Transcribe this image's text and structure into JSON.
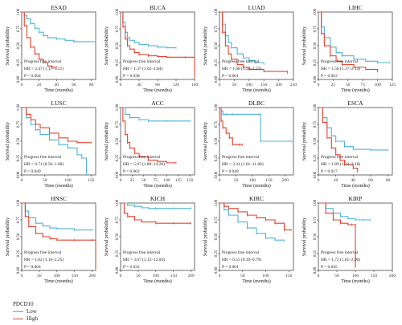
{
  "colors": {
    "low": "#4fb3d8",
    "high": "#e0442e"
  },
  "y_label": "Survival probability",
  "x_label": "Time (months)",
  "y_ticks": [
    "0.00",
    "0.25",
    "0.50",
    "0.75",
    "1.00"
  ],
  "legend": {
    "title": "PDCD10",
    "low": "Low",
    "high": "High"
  },
  "chart_data": [
    {
      "type": "line",
      "title": "ESAD",
      "xlim": [
        0,
        85
      ],
      "x_ticks": [
        0,
        20,
        40,
        60,
        80
      ],
      "ylim": [
        0,
        1
      ],
      "annotation_title": "Progress free interval",
      "hr": "HR = 2.47 (1.17–5.21)",
      "p": "P = 0.004",
      "series": [
        {
          "name": "Low",
          "x": [
            0,
            3,
            6,
            10,
            15,
            20,
            25,
            30,
            40,
            50,
            60,
            85
          ],
          "y": [
            1,
            0.95,
            0.9,
            0.83,
            0.76,
            0.7,
            0.65,
            0.62,
            0.6,
            0.58,
            0.56,
            0.56
          ]
        },
        {
          "name": "High",
          "x": [
            0,
            3,
            6,
            10,
            15,
            20,
            25,
            30,
            35,
            40
          ],
          "y": [
            1,
            0.8,
            0.62,
            0.48,
            0.38,
            0.3,
            0.25,
            0.2,
            0.18,
            0.18
          ]
        }
      ]
    },
    {
      "type": "line",
      "title": "BLCA",
      "xlim": [
        0,
        160
      ],
      "x_ticks": [
        0,
        40,
        80,
        120,
        160
      ],
      "ylim": [
        0,
        1
      ],
      "annotation_title": "Progress free interval",
      "hr": "HR = 1.37 (1.02–1.84)",
      "p": "P = 0.038",
      "series": [
        {
          "name": "Low",
          "x": [
            0,
            5,
            10,
            15,
            20,
            30,
            40,
            60,
            80,
            100,
            120
          ],
          "y": [
            1,
            0.85,
            0.7,
            0.62,
            0.58,
            0.55,
            0.52,
            0.5,
            0.48,
            0.47,
            0.47
          ]
        },
        {
          "name": "High",
          "x": [
            0,
            5,
            10,
            15,
            20,
            30,
            40,
            60,
            80,
            100,
            140,
            160
          ],
          "y": [
            1,
            0.78,
            0.6,
            0.5,
            0.45,
            0.4,
            0.37,
            0.35,
            0.34,
            0.33,
            0.33,
            0.05
          ]
        }
      ]
    },
    {
      "type": "line",
      "title": "LUAD",
      "xlim": [
        0,
        250
      ],
      "x_ticks": [
        0,
        50,
        100,
        150,
        200,
        250
      ],
      "ylim": [
        0,
        1
      ],
      "annotation_title": "Progress free interval",
      "hr": "HR = 1.68 (1.24–2.27)",
      "p": "P = 0.001",
      "series": [
        {
          "name": "Low",
          "x": [
            0,
            10,
            20,
            30,
            40,
            60,
            80,
            100,
            120,
            150
          ],
          "y": [
            1,
            0.82,
            0.65,
            0.55,
            0.47,
            0.38,
            0.32,
            0.28,
            0.25,
            0.23
          ]
        },
        {
          "name": "High",
          "x": [
            0,
            10,
            20,
            30,
            40,
            60,
            80,
            100,
            150,
            230
          ],
          "y": [
            1,
            0.7,
            0.5,
            0.38,
            0.3,
            0.22,
            0.18,
            0.15,
            0.12,
            0.1
          ]
        }
      ]
    },
    {
      "type": "line",
      "title": "LIHC",
      "xlim": [
        0,
        125
      ],
      "x_ticks": [
        0,
        25,
        50,
        75,
        100,
        125
      ],
      "ylim": [
        0,
        1
      ],
      "annotation_title": "Progress free interval",
      "hr": "HR = 1.58 (1.17–2.13)",
      "p": "P = 0.003",
      "series": [
        {
          "name": "Low",
          "x": [
            0,
            5,
            10,
            20,
            30,
            40,
            60,
            80,
            100,
            120
          ],
          "y": [
            1,
            0.78,
            0.62,
            0.48,
            0.4,
            0.35,
            0.3,
            0.27,
            0.25,
            0.25
          ]
        },
        {
          "name": "High",
          "x": [
            0,
            5,
            10,
            20,
            30,
            40,
            60,
            80,
            100
          ],
          "y": [
            1,
            0.68,
            0.5,
            0.35,
            0.27,
            0.22,
            0.18,
            0.15,
            0.12
          ]
        }
      ]
    },
    {
      "type": "line",
      "title": "LUSC",
      "xlim": [
        0,
        160
      ],
      "x_ticks": [
        0,
        50,
        100,
        150
      ],
      "ylim": [
        0,
        1
      ],
      "annotation_title": "Progress free interval",
      "hr": "HR = 0.71 (0.50–1.00)",
      "p": "P = 0.049",
      "series": [
        {
          "name": "Low",
          "x": [
            0,
            10,
            20,
            30,
            40,
            60,
            80,
            100,
            120,
            130,
            140
          ],
          "y": [
            1,
            0.85,
            0.75,
            0.67,
            0.6,
            0.52,
            0.45,
            0.4,
            0.3,
            0.25,
            0.02
          ]
        },
        {
          "name": "High",
          "x": [
            0,
            10,
            20,
            30,
            40,
            60,
            80,
            100,
            120,
            150
          ],
          "y": [
            1,
            0.9,
            0.82,
            0.75,
            0.7,
            0.62,
            0.55,
            0.5,
            0.48,
            0.48
          ]
        }
      ]
    },
    {
      "type": "line",
      "title": "ACC",
      "xlim": [
        0,
        160
      ],
      "x_ticks": [
        0,
        25,
        50,
        75,
        100,
        125,
        150
      ],
      "ylim": [
        0,
        1
      ],
      "annotation_title": "Progress free interval",
      "hr": "HR = 5.07 (1.80–14.28)",
      "p": "P = 0.002",
      "series": [
        {
          "name": "Low",
          "x": [
            0,
            10,
            20,
            40,
            60,
            100,
            150
          ],
          "y": [
            1,
            0.9,
            0.85,
            0.82,
            0.8,
            0.8,
            0.8
          ]
        },
        {
          "name": "High",
          "x": [
            0,
            5,
            10,
            15,
            20,
            30,
            40,
            60,
            80,
            100,
            120
          ],
          "y": [
            1,
            0.8,
            0.6,
            0.48,
            0.4,
            0.32,
            0.27,
            0.22,
            0.2,
            0.18,
            0.18
          ]
        }
      ]
    },
    {
      "type": "line",
      "title": "DLBC",
      "xlim": [
        0,
        225
      ],
      "x_ticks": [
        0,
        50,
        100,
        150,
        200
      ],
      "ylim": [
        0,
        1
      ],
      "annotation_title": "Progress free interval",
      "hr": "HR = 3.34 (1.01–11.08)",
      "p": "P = 0.049",
      "series": [
        {
          "name": "Low",
          "x": [
            0,
            5,
            10,
            20,
            40,
            120,
            125,
            220
          ],
          "y": [
            1,
            0.95,
            0.9,
            0.9,
            0.9,
            0.9,
            0.5,
            0.5
          ]
        },
        {
          "name": "High",
          "x": [
            0,
            5,
            10,
            20,
            30,
            40,
            60,
            70
          ],
          "y": [
            1,
            0.8,
            0.7,
            0.62,
            0.55,
            0.45,
            0.45,
            0.45
          ]
        }
      ]
    },
    {
      "type": "line",
      "title": "ESCA",
      "xlim": [
        0,
        85
      ],
      "x_ticks": [
        0,
        20,
        40,
        60,
        80
      ],
      "ylim": [
        0,
        1
      ],
      "annotation_title": "Progress free interval",
      "hr": "HR = 1.89 (1.12–3.18)",
      "p": "P = 0.017",
      "series": [
        {
          "name": "Low",
          "x": [
            0,
            5,
            10,
            15,
            20,
            30,
            40,
            60,
            80
          ],
          "y": [
            1,
            0.85,
            0.7,
            0.58,
            0.5,
            0.42,
            0.38,
            0.37,
            0.37
          ]
        },
        {
          "name": "High",
          "x": [
            0,
            5,
            10,
            15,
            20,
            25,
            30,
            40,
            45
          ],
          "y": [
            1,
            0.78,
            0.55,
            0.4,
            0.3,
            0.22,
            0.15,
            0.1,
            0.05
          ]
        }
      ]
    },
    {
      "type": "line",
      "title": "HNSC",
      "xlim": [
        0,
        210
      ],
      "x_ticks": [
        0,
        50,
        100,
        150,
        200
      ],
      "ylim": [
        0,
        1
      ],
      "annotation_title": "Progress free interval",
      "hr": "HR = 1.62 (1.16–2.25)",
      "p": "P = 0.004",
      "series": [
        {
          "name": "Low",
          "x": [
            0,
            10,
            20,
            40,
            60,
            80,
            100,
            150,
            200
          ],
          "y": [
            1,
            0.88,
            0.78,
            0.7,
            0.66,
            0.63,
            0.62,
            0.6,
            0.6
          ]
        },
        {
          "name": "High",
          "x": [
            0,
            10,
            20,
            40,
            60,
            80,
            100,
            150,
            200,
            210
          ],
          "y": [
            1,
            0.8,
            0.65,
            0.55,
            0.5,
            0.47,
            0.45,
            0.45,
            0.45,
            0.02
          ]
        }
      ]
    },
    {
      "type": "line",
      "title": "KICH",
      "xlim": [
        0,
        210
      ],
      "x_ticks": [
        0,
        50,
        100,
        150,
        200
      ],
      "ylim": [
        0,
        1
      ],
      "annotation_title": "Progress free interval",
      "hr": "HR = 3.67 (1.12–12.04)",
      "p": "P = 0.032",
      "series": [
        {
          "name": "Low",
          "x": [
            0,
            20,
            40,
            60,
            80,
            100,
            150,
            200
          ],
          "y": [
            1,
            0.97,
            0.95,
            0.93,
            0.92,
            0.92,
            0.92,
            0.92
          ]
        },
        {
          "name": "High",
          "x": [
            0,
            10,
            20,
            40,
            60,
            100,
            150,
            200
          ],
          "y": [
            1,
            0.85,
            0.8,
            0.75,
            0.72,
            0.7,
            0.7,
            0.7
          ]
        }
      ]
    },
    {
      "type": "line",
      "title": "KIRC",
      "xlim": [
        0,
        160
      ],
      "x_ticks": [
        0,
        50,
        100,
        150
      ],
      "ylim": [
        0,
        1
      ],
      "annotation_title": "Progress free interval",
      "hr": "HR = 0.55 (0.39–0.79)",
      "p": "P = 0.001",
      "series": [
        {
          "name": "Low",
          "x": [
            0,
            10,
            20,
            40,
            60,
            80,
            100,
            120,
            140
          ],
          "y": [
            1,
            0.9,
            0.82,
            0.72,
            0.63,
            0.55,
            0.48,
            0.45,
            0.44
          ]
        },
        {
          "name": "High",
          "x": [
            0,
            10,
            20,
            40,
            60,
            80,
            100,
            120,
            140,
            155
          ],
          "y": [
            1,
            0.95,
            0.92,
            0.87,
            0.82,
            0.78,
            0.75,
            0.7,
            0.6,
            0.6
          ]
        }
      ]
    },
    {
      "type": "line",
      "title": "KIRP",
      "xlim": [
        0,
        200
      ],
      "x_ticks": [
        0,
        50,
        100,
        150,
        200
      ],
      "ylim": [
        0,
        1
      ],
      "annotation_title": "Progress free interval",
      "hr": "HR = 1.72 (1.01–2.90)",
      "p": "P = 0.045",
      "series": [
        {
          "name": "Low",
          "x": [
            0,
            20,
            40,
            60,
            80,
            100,
            120,
            140
          ],
          "y": [
            1,
            0.92,
            0.85,
            0.8,
            0.77,
            0.75,
            0.75,
            0.75
          ]
        },
        {
          "name": "High",
          "x": [
            0,
            20,
            40,
            60,
            80,
            90,
            100
          ],
          "y": [
            1,
            0.85,
            0.75,
            0.7,
            0.68,
            0.68,
            0.05
          ]
        }
      ]
    }
  ]
}
